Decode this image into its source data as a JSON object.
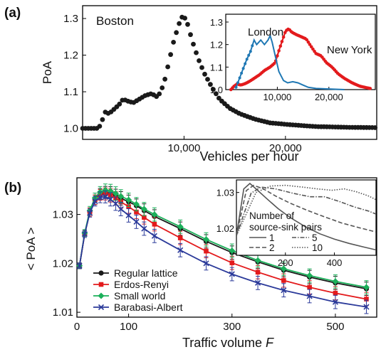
{
  "colors": {
    "boston": "#1a1a1a",
    "london": "#1f78b4",
    "new_york": "#e31a1c",
    "regular_lattice": "#1a1a1a",
    "erdos_renyi": "#e31a1c",
    "small_world": "#1bb05a",
    "barabasi_albert": "#2b3a9a",
    "inset_b": "#555555"
  },
  "chart_data": [
    {
      "panel_label": "(a)",
      "type": "scatter",
      "annotation": "Boston",
      "xlabel": "Vehicles per hour",
      "ylabel": "PoA",
      "xlim": [
        0,
        29000
      ],
      "ylim": [
        0.97,
        1.335
      ],
      "xticks": [
        10000,
        20000
      ],
      "xtick_labels": [
        "10,000",
        "20,000"
      ],
      "yticks": [
        1.0,
        1.1,
        1.2,
        1.3
      ],
      "ytick_labels": [
        "1.0",
        "1.1",
        "1.2",
        "1.3"
      ],
      "series": [
        {
          "points": [
            [
              0,
              1.0
            ],
            [
              1500,
              1.0
            ],
            [
              1800,
              1.01
            ],
            [
              2200,
              1.045
            ],
            [
              2600,
              1.04
            ],
            [
              3000,
              1.05
            ],
            [
              3600,
              1.065
            ],
            [
              4000,
              1.08
            ],
            [
              4400,
              1.075
            ],
            [
              5000,
              1.07
            ],
            [
              5600,
              1.08
            ],
            [
              6200,
              1.09
            ],
            [
              6800,
              1.095
            ],
            [
              7400,
              1.085
            ],
            [
              8000,
              1.12
            ],
            [
              8500,
              1.18
            ],
            [
              9000,
              1.24
            ],
            [
              9500,
              1.285
            ],
            [
              9900,
              1.31
            ],
            [
              10300,
              1.29
            ],
            [
              10800,
              1.24
            ],
            [
              11400,
              1.19
            ],
            [
              12000,
              1.15
            ],
            [
              12800,
              1.11
            ],
            [
              13500,
              1.08
            ],
            [
              14500,
              1.055
            ],
            [
              15500,
              1.04
            ],
            [
              17000,
              1.025
            ],
            [
              18500,
              1.015
            ],
            [
              20500,
              1.01
            ],
            [
              23000,
              1.005
            ],
            [
              26000,
              1.003
            ],
            [
              29000,
              1.002
            ]
          ]
        }
      ]
    },
    {
      "panel_label": "inset-a",
      "type": "line",
      "xlim": [
        0,
        29000
      ],
      "ylim": [
        1.0,
        1.3
      ],
      "xticks": [
        10000,
        20000
      ],
      "xtick_labels": [
        "10,000",
        "20,000"
      ],
      "yticks": [
        1.0,
        1.1,
        1.2,
        1.3
      ],
      "ytick_labels": [
        "1.0",
        "1.1",
        "1.2",
        "1.3"
      ],
      "series": [
        {
          "name": "London",
          "points": [
            [
              2000,
              1.01
            ],
            [
              3000,
              1.07
            ],
            [
              4000,
              1.13
            ],
            [
              4800,
              1.17
            ],
            [
              5500,
              1.22
            ],
            [
              6000,
              1.2
            ],
            [
              6800,
              1.22
            ],
            [
              7500,
              1.2
            ],
            [
              8200,
              1.22
            ],
            [
              8600,
              1.24
            ],
            [
              9000,
              1.21
            ],
            [
              9600,
              1.15
            ],
            [
              10300,
              1.08
            ],
            [
              11200,
              1.04
            ],
            [
              12000,
              1.03
            ],
            [
              13000,
              1.035
            ],
            [
              14000,
              1.03
            ],
            [
              15000,
              1.02
            ],
            [
              16000,
              1.01
            ],
            [
              17500,
              1.005
            ],
            [
              20000,
              1.003
            ],
            [
              23000,
              1.0
            ]
          ]
        },
        {
          "name": "New York",
          "points": [
            [
              1000,
              1.0
            ],
            [
              1600,
              1.015
            ],
            [
              2200,
              1.025
            ],
            [
              2900,
              1.02
            ],
            [
              3600,
              1.025
            ],
            [
              4500,
              1.035
            ],
            [
              5500,
              1.05
            ],
            [
              6500,
              1.065
            ],
            [
              7500,
              1.085
            ],
            [
              8600,
              1.1
            ],
            [
              9600,
              1.12
            ],
            [
              10400,
              1.18
            ],
            [
              11000,
              1.22
            ],
            [
              11600,
              1.26
            ],
            [
              12200,
              1.27
            ],
            [
              12800,
              1.255
            ],
            [
              13600,
              1.245
            ],
            [
              14600,
              1.235
            ],
            [
              15600,
              1.225
            ],
            [
              16600,
              1.19
            ],
            [
              17500,
              1.16
            ],
            [
              18500,
              1.15
            ],
            [
              19500,
              1.12
            ],
            [
              20600,
              1.1
            ],
            [
              21800,
              1.07
            ],
            [
              23000,
              1.05
            ],
            [
              24500,
              1.03
            ],
            [
              26000,
              1.015
            ],
            [
              28000,
              1.005
            ]
          ]
        }
      ]
    },
    {
      "panel_label": "(b)",
      "type": "line",
      "xlabel": "Traffic volume F",
      "ylabel": "< PoA >",
      "xlim": [
        0,
        580
      ],
      "ylim": [
        1.009,
        1.0375
      ],
      "xticks": [
        0,
        100,
        300,
        500
      ],
      "xtick_labels": [
        "0",
        "100",
        "300",
        "500"
      ],
      "yticks": [
        1.01,
        1.02,
        1.03
      ],
      "ytick_labels": [
        "1.01",
        "1.02",
        "1.03"
      ],
      "legend_position": "bottom-left",
      "series": [
        {
          "name": "Regular lattice",
          "values": [
            1.0195,
            1.026,
            1.0305,
            1.033,
            1.0342,
            1.0345,
            1.0343,
            1.0338,
            1.0333,
            1.0326,
            1.0318,
            1.0308,
            1.0296,
            1.0271,
            1.0245,
            1.0222,
            1.0203,
            1.0186,
            1.0172,
            1.016,
            1.0148
          ]
        },
        {
          "name": "Erdos-Renyi",
          "values": [
            1.0195,
            1.026,
            1.0305,
            1.033,
            1.034,
            1.0342,
            1.0339,
            1.0333,
            1.0326,
            1.0316,
            1.0305,
            1.0294,
            1.028,
            1.0252,
            1.0225,
            1.0201,
            1.0182,
            1.0165,
            1.0151,
            1.0139,
            1.0127
          ]
        },
        {
          "name": "Small world",
          "values": [
            1.0195,
            1.0262,
            1.0308,
            1.0334,
            1.0346,
            1.035,
            1.0348,
            1.0343,
            1.0337,
            1.033,
            1.0321,
            1.0311,
            1.03,
            1.0275,
            1.0249,
            1.0226,
            1.0206,
            1.0189,
            1.0175,
            1.0163,
            1.0151
          ]
        },
        {
          "name": "Barabasi-Albert",
          "values": [
            1.0195,
            1.026,
            1.0303,
            1.0327,
            1.0335,
            1.0336,
            1.0331,
            1.0322,
            1.0311,
            1.0298,
            1.0285,
            1.0271,
            1.0256,
            1.0227,
            1.02,
            1.0178,
            1.016,
            1.0145,
            1.0133,
            1.0121,
            1.0111
          ]
        }
      ],
      "x": [
        5,
        15,
        25,
        35,
        45,
        55,
        65,
        75,
        85,
        100,
        115,
        130,
        150,
        200,
        250,
        300,
        350,
        400,
        450,
        500,
        560
      ]
    },
    {
      "panel_label": "inset-b",
      "type": "line",
      "xlim": [
        0,
        570
      ],
      "ylim": [
        1.0125,
        1.0335
      ],
      "xticks": [
        200,
        400
      ],
      "xtick_labels": [
        "200",
        "400"
      ],
      "yticks": [
        1.02,
        1.03
      ],
      "ytick_labels": [
        "1.02",
        "1.03"
      ],
      "legend_title": "Number of source-sink pairs",
      "legend_title_lines": [
        "Number of",
        "source-sink pairs"
      ],
      "series": [
        {
          "name": "1",
          "dash": "solid",
          "points": [
            [
              0,
              1.018
            ],
            [
              30,
              1.031
            ],
            [
              55,
              1.0325
            ],
            [
              80,
              1.031
            ],
            [
              120,
              1.0285
            ],
            [
              170,
              1.0255
            ],
            [
              220,
              1.023
            ],
            [
              280,
              1.0205
            ],
            [
              340,
              1.0185
            ],
            [
              400,
              1.017
            ],
            [
              460,
              1.0158
            ],
            [
              520,
              1.0148
            ],
            [
              570,
              1.014
            ]
          ]
        },
        {
          "name": "2",
          "dash": "dashed",
          "points": [
            [
              0,
              1.018
            ],
            [
              40,
              1.0305
            ],
            [
              70,
              1.032
            ],
            [
              110,
              1.031
            ],
            [
              160,
              1.029
            ],
            [
              220,
              1.027
            ],
            [
              290,
              1.025
            ],
            [
              360,
              1.0232
            ],
            [
              430,
              1.0215
            ],
            [
              500,
              1.0202
            ],
            [
              570,
              1.019
            ]
          ]
        },
        {
          "name": "5",
          "dash": "dashdot",
          "points": [
            [
              0,
              1.018
            ],
            [
              60,
              1.0298
            ],
            [
              100,
              1.0315
            ],
            [
              160,
              1.031
            ],
            [
              230,
              1.0298
            ],
            [
              300,
              1.0288
            ],
            [
              360,
              1.0288
            ],
            [
              420,
              1.0275
            ],
            [
              480,
              1.026
            ],
            [
              540,
              1.0248
            ],
            [
              570,
              1.024
            ]
          ]
        },
        {
          "name": "10",
          "dash": "dotted",
          "points": [
            [
              0,
              1.018
            ],
            [
              80,
              1.03
            ],
            [
              140,
              1.0318
            ],
            [
              200,
              1.032
            ],
            [
              270,
              1.0315
            ],
            [
              330,
              1.031
            ],
            [
              390,
              1.0306
            ],
            [
              440,
              1.031
            ],
            [
              490,
              1.0302
            ],
            [
              540,
              1.029
            ],
            [
              570,
              1.028
            ]
          ]
        }
      ]
    }
  ]
}
